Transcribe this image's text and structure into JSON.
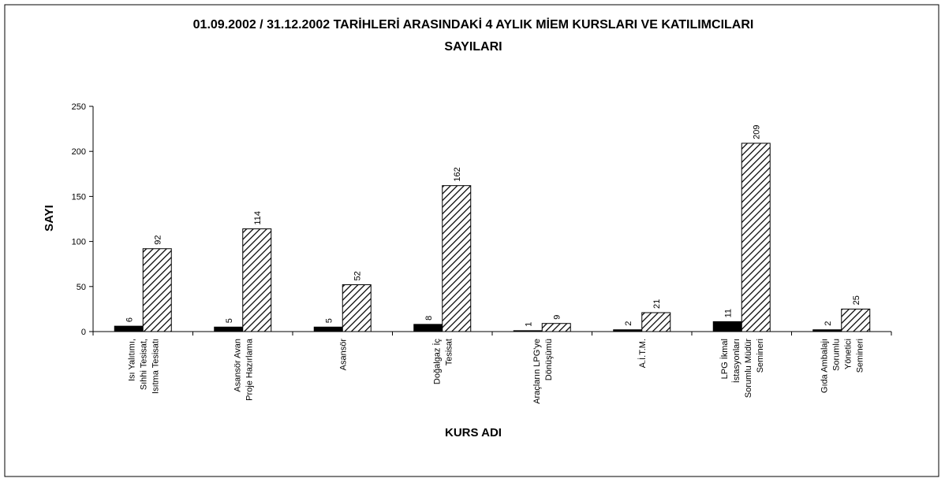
{
  "chart_data": {
    "type": "bar",
    "title": [
      "01.09.2002 / 31.12.2002 TARİHLERİ ARASINDAKİ 4 AYLIK MİEM KURSLARI VE KATILIMCILARI",
      "SAYILARI"
    ],
    "x_label": "KURS ADI",
    "y_label": "SAYI",
    "categories": [
      [
        "Isı Yalıtımı,",
        "Sıhhi Tesisat,",
        "Isıtma Tesisatı"
      ],
      [
        "Asansör Avan",
        "Proje Hazırlama"
      ],
      [
        "Asansör"
      ],
      [
        "Doğalgaz İç",
        "Tesisat"
      ],
      [
        "Araçların LPG'ye",
        "Dönüşümü"
      ],
      [
        "A.İ.T.M."
      ],
      [
        "LPG İkmal",
        "İstasyonları",
        "Sorumlu Müdür",
        "Semineri"
      ],
      [
        "Gıda Ambalajı",
        "Sorumlu",
        "Yönetici",
        "Semineri"
      ]
    ],
    "series": [
      {
        "color": "#000000",
        "pattern": "solid",
        "values": [
          6,
          5,
          5,
          8,
          1,
          2,
          11,
          2
        ]
      },
      {
        "color": "#000000",
        "pattern": "hatch",
        "values": [
          92,
          114,
          52,
          162,
          9,
          21,
          209,
          25
        ]
      }
    ],
    "ylim": [
      0,
      250
    ],
    "yticks": [
      0,
      50,
      100,
      150,
      200,
      250
    ],
    "grid": false
  }
}
